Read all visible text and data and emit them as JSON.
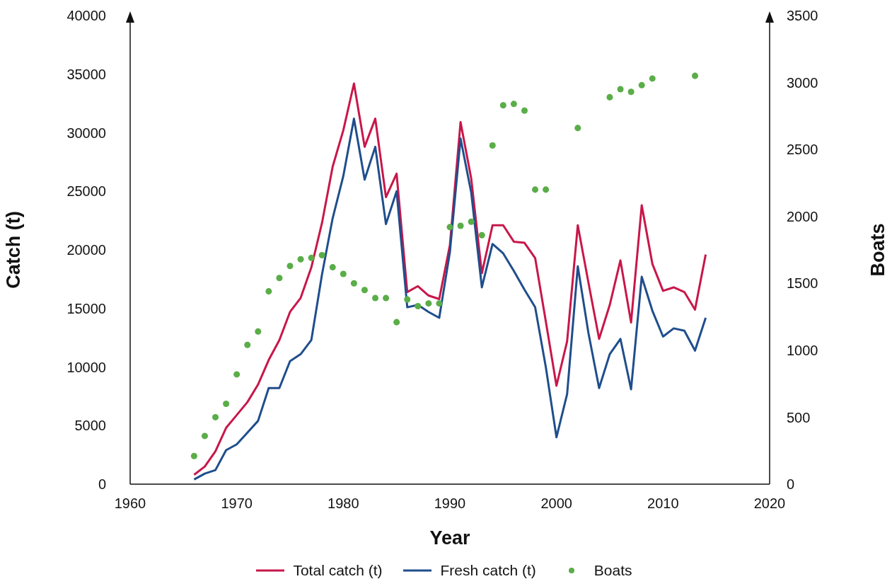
{
  "chart_data": {
    "type": "line",
    "xlabel": "Year",
    "ylabel": "Catch (t)",
    "y2label": "Boats",
    "x": [
      1966,
      1967,
      1968,
      1969,
      1970,
      1971,
      1972,
      1973,
      1974,
      1975,
      1976,
      1977,
      1978,
      1979,
      1980,
      1981,
      1982,
      1983,
      1984,
      1985,
      1986,
      1987,
      1988,
      1989,
      1990,
      1991,
      1992,
      1993,
      1994,
      1995,
      1996,
      1997,
      1998,
      1999,
      2000,
      2001,
      2002,
      2003,
      2004,
      2005,
      2006,
      2007,
      2008,
      2009,
      2010,
      2011,
      2012,
      2013,
      2014
    ],
    "series": [
      {
        "name": "Total catch (t)",
        "marker": "none",
        "color": "#c8174a",
        "values": [
          800,
          1500,
          2800,
          4800,
          5900,
          7000,
          8500,
          10600,
          12300,
          14700,
          15900,
          18500,
          22300,
          27100,
          30200,
          34200,
          28800,
          31200,
          24500,
          26500,
          16400,
          16900,
          16100,
          15800,
          20400,
          30900,
          26100,
          18000,
          22100,
          22100,
          20700,
          20600,
          19300,
          13900,
          8400,
          12200,
          22100,
          17200,
          12400,
          15300,
          19100,
          13800,
          23800,
          18800,
          16500,
          16800,
          16400,
          14900,
          19600
        ]
      },
      {
        "name": "Fresh catch (t)",
        "marker": "none",
        "color": "#1f4e8c",
        "values": [
          400,
          900,
          1200,
          2900,
          3400,
          4400,
          5400,
          8200,
          8200,
          10500,
          11100,
          12300,
          17900,
          22700,
          26300,
          31200,
          26000,
          28800,
          22200,
          25000,
          15100,
          15300,
          14700,
          14200,
          19800,
          29500,
          24900,
          16800,
          20500,
          19700,
          18200,
          16600,
          15100,
          10000,
          4000,
          7700,
          18600,
          12900,
          8200,
          11100,
          12400,
          8100,
          17700,
          14800,
          12600,
          13300,
          13100,
          11400,
          14200
        ]
      },
      {
        "name": "Boats",
        "type": "scatter",
        "marker": "circle",
        "axis": "y2",
        "color": "#5aad48",
        "values": [
          210,
          360,
          500,
          600,
          820,
          1040,
          1140,
          1440,
          1540,
          1630,
          1680,
          1690,
          1710,
          1620,
          1570,
          1500,
          1450,
          1390,
          1390,
          1210,
          1380,
          1330,
          1350,
          1350,
          1920,
          1930,
          1960,
          1860,
          2530,
          2830,
          2840,
          2790,
          2200,
          2200,
          null,
          null,
          2660,
          null,
          null,
          2890,
          2950,
          2930,
          2980,
          3030,
          null,
          null,
          null,
          3050,
          null
        ]
      }
    ],
    "xlim": [
      1960,
      2020
    ],
    "xticks": [
      1960,
      1970,
      1980,
      1990,
      2000,
      2010,
      2020
    ],
    "ylim": [
      0,
      40000
    ],
    "yticks": [
      0,
      5000,
      10000,
      15000,
      20000,
      25000,
      30000,
      35000,
      40000
    ],
    "y2lim": [
      0,
      3500
    ],
    "y2ticks": [
      0,
      500,
      1000,
      1500,
      2000,
      2500,
      3000,
      3500
    ],
    "grid": false,
    "legend": "bottom"
  }
}
